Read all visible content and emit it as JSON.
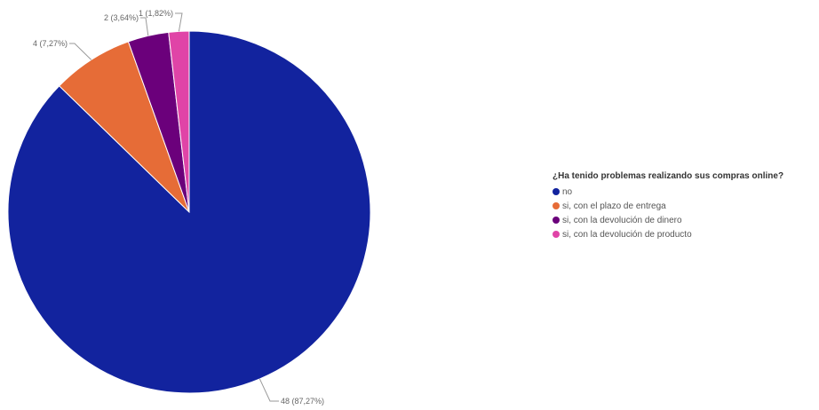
{
  "chart_data": {
    "type": "pie",
    "title": "",
    "legend": {
      "title": "¿Ha tenido problemas realizando sus compras online?",
      "placement": "right"
    },
    "slices": [
      {
        "label": "no",
        "value": 48,
        "percent_label": "87,27%",
        "data_label": "48 (87,27%)",
        "color": "#12239E"
      },
      {
        "label": "si, con el plazo de entrega",
        "value": 4,
        "percent_label": "7,27%",
        "data_label": "4 (7,27%)",
        "color": "#E66C37"
      },
      {
        "label": "si, con la devolución de dinero",
        "value": 2,
        "percent_label": "3,64%",
        "data_label": "2 (3,64%)",
        "color": "#6B007B"
      },
      {
        "label": "si, con la devolución de producto",
        "value": 1,
        "percent_label": "1,82%",
        "data_label": "1 (1,82%)",
        "color": "#E044A7"
      }
    ]
  }
}
